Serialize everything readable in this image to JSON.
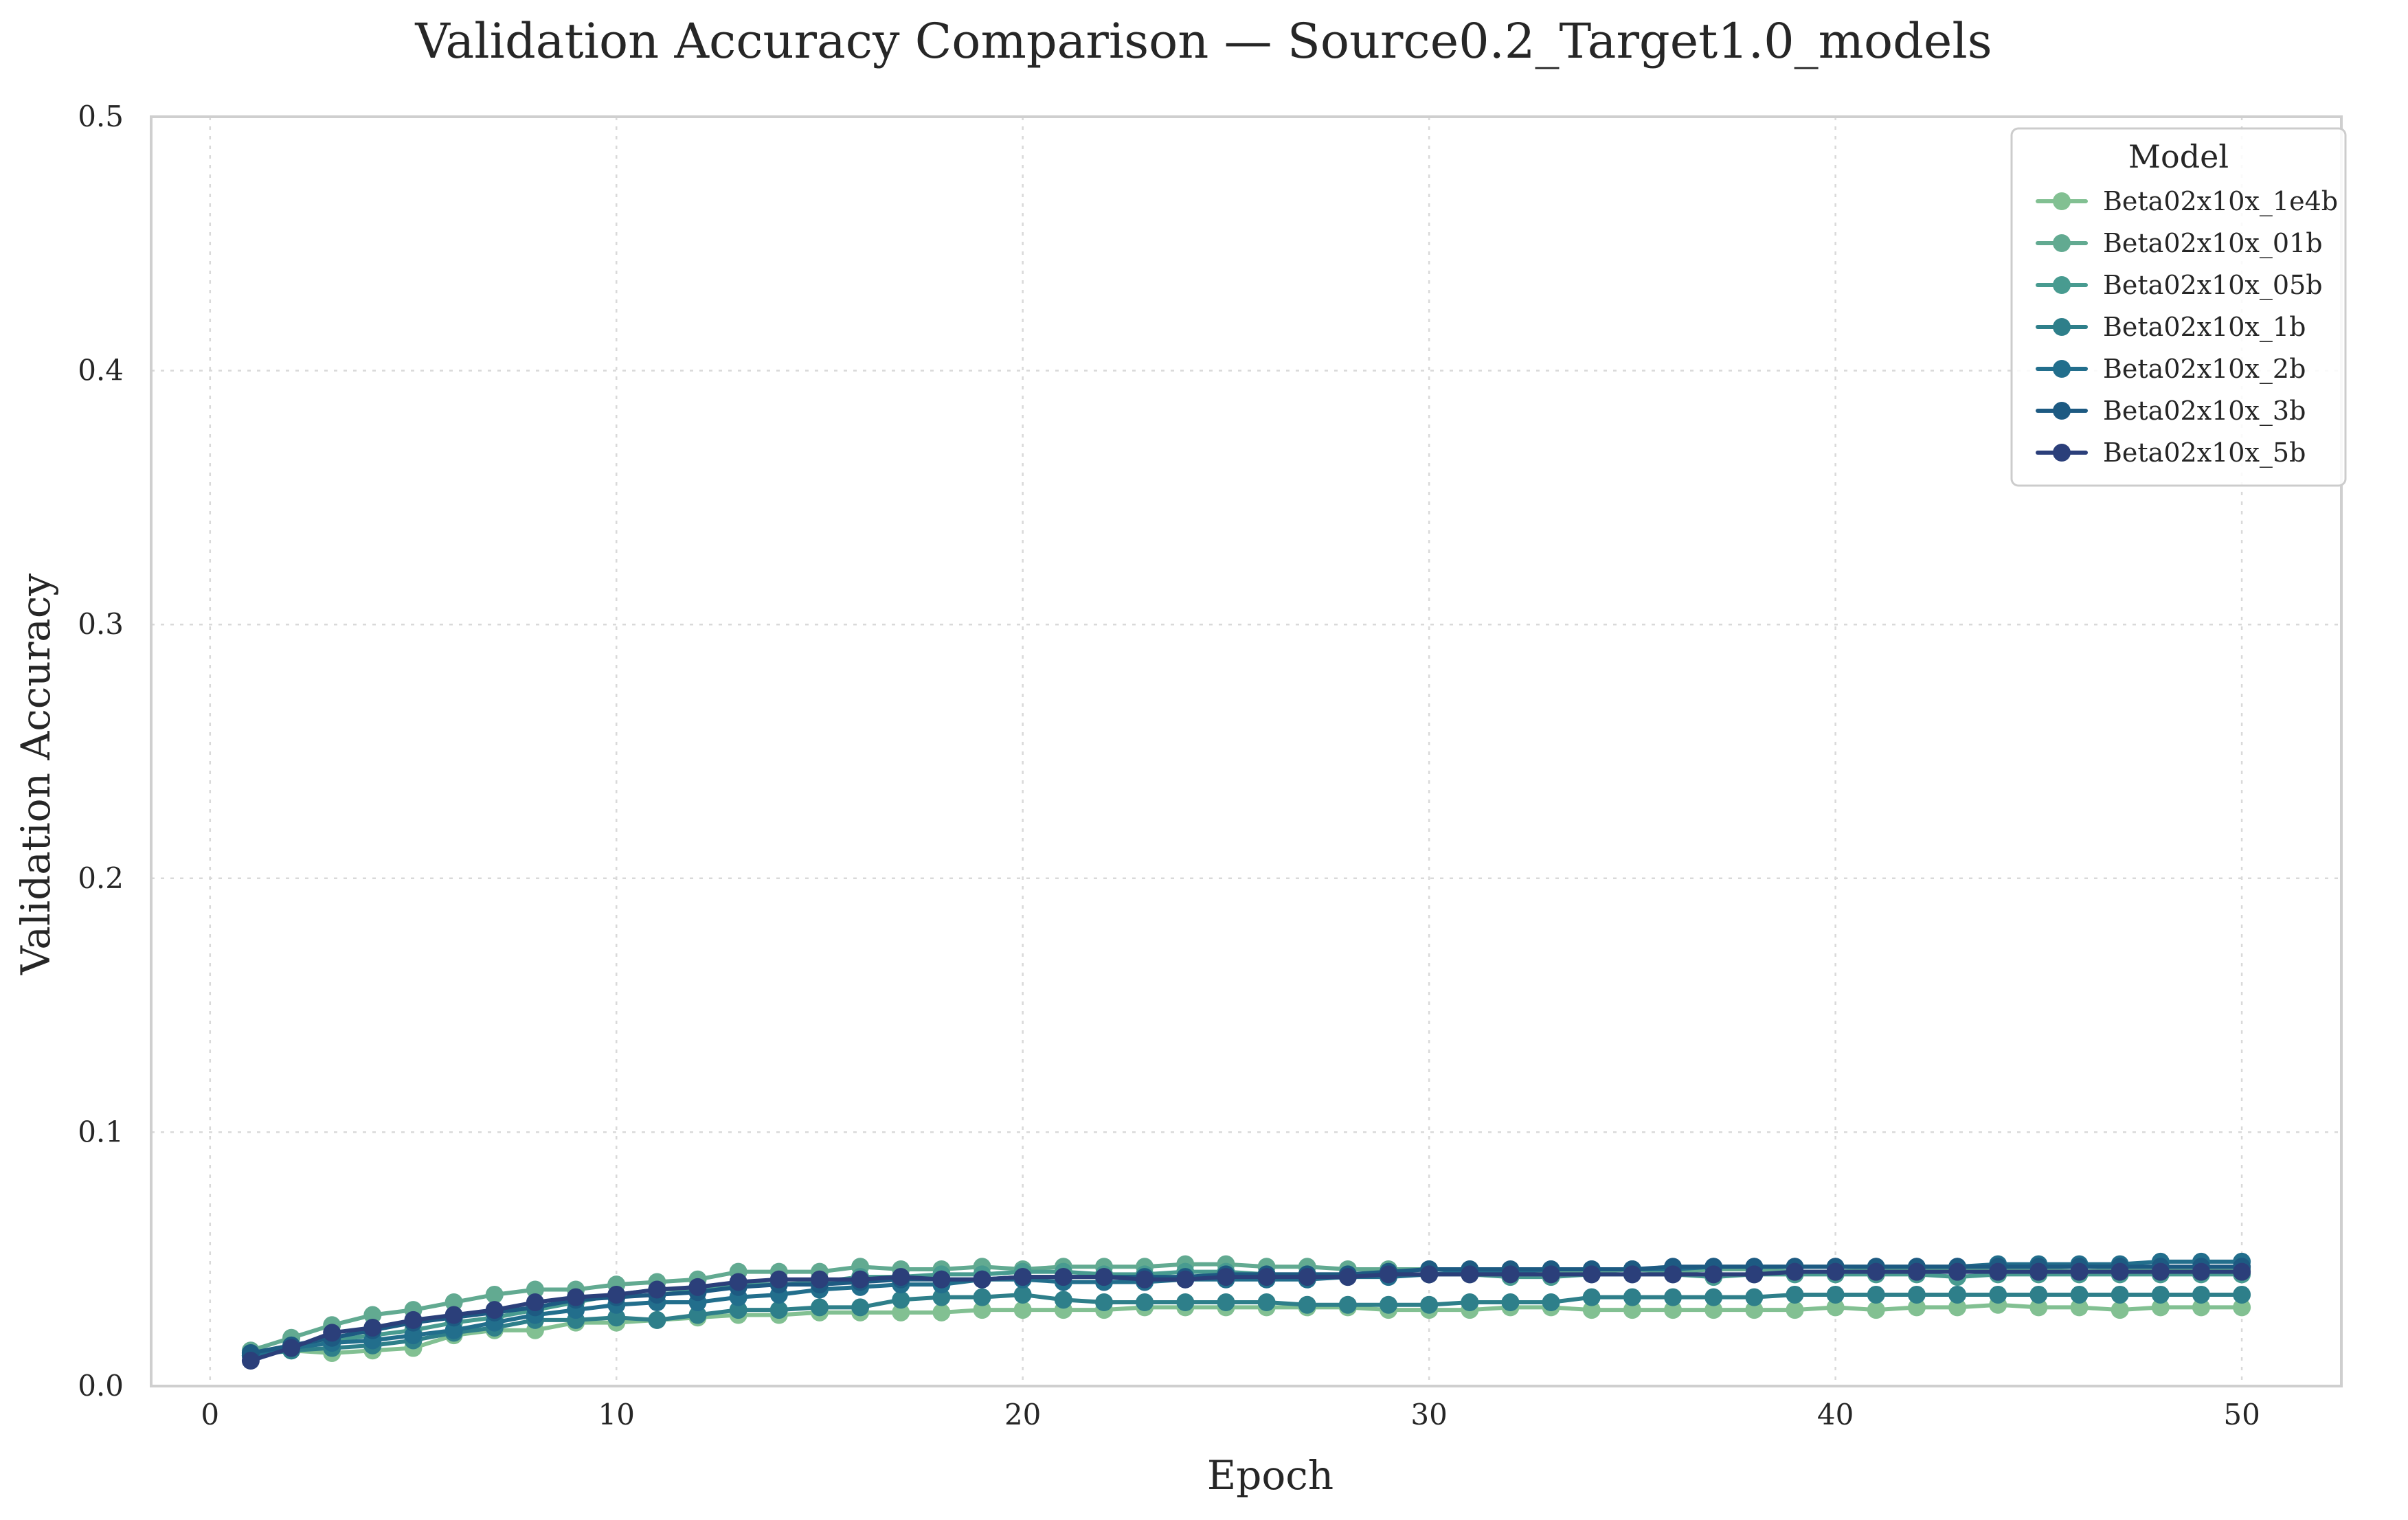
{
  "chart_data": {
    "type": "line",
    "title": "Validation Accuracy Comparison — Source0.2_Target1.0_models",
    "xlabel": "Epoch",
    "ylabel": "Validation Accuracy",
    "xlim": [
      -1.45,
      52.45
    ],
    "ylim": [
      0.0,
      0.5
    ],
    "xticks": [
      0,
      10,
      20,
      30,
      40,
      50
    ],
    "yticks": [
      0.0,
      0.1,
      0.2,
      0.3,
      0.4,
      0.5
    ],
    "xtick_labels": [
      "0",
      "10",
      "20",
      "30",
      "40",
      "50"
    ],
    "ytick_labels": [
      "0.0",
      "0.1",
      "0.2",
      "0.3",
      "0.4",
      "0.5"
    ],
    "grid": true,
    "legend": {
      "title": "Model",
      "position": "top-right"
    },
    "markers": "circle",
    "x": [
      1,
      2,
      3,
      4,
      5,
      6,
      7,
      8,
      9,
      10,
      11,
      12,
      13,
      14,
      15,
      16,
      17,
      18,
      19,
      20,
      21,
      22,
      23,
      24,
      25,
      26,
      27,
      28,
      29,
      30,
      31,
      32,
      33,
      34,
      35,
      36,
      37,
      38,
      39,
      40,
      41,
      42,
      43,
      44,
      45,
      46,
      47,
      48,
      49,
      50
    ],
    "series": [
      {
        "name": "Beta02x10x_1e4b",
        "color": "#82c092",
        "values": [
          0.012,
          0.014,
          0.013,
          0.014,
          0.015,
          0.02,
          0.022,
          0.022,
          0.025,
          0.025,
          0.026,
          0.027,
          0.028,
          0.028,
          0.029,
          0.029,
          0.029,
          0.029,
          0.03,
          0.03,
          0.03,
          0.03,
          0.031,
          0.031,
          0.031,
          0.031,
          0.031,
          0.031,
          0.03,
          0.03,
          0.03,
          0.031,
          0.031,
          0.03,
          0.03,
          0.03,
          0.03,
          0.03,
          0.03,
          0.031,
          0.03,
          0.031,
          0.031,
          0.032,
          0.031,
          0.031,
          0.03,
          0.031,
          0.031,
          0.031
        ]
      },
      {
        "name": "Beta02x10x_01b",
        "color": "#62aa91",
        "values": [
          0.014,
          0.019,
          0.024,
          0.028,
          0.03,
          0.033,
          0.036,
          0.038,
          0.038,
          0.04,
          0.041,
          0.042,
          0.045,
          0.045,
          0.045,
          0.047,
          0.046,
          0.046,
          0.047,
          0.046,
          0.047,
          0.047,
          0.047,
          0.048,
          0.048,
          0.047,
          0.047,
          0.046,
          0.046,
          0.046,
          0.046,
          0.045,
          0.045,
          0.045,
          0.046,
          0.045,
          0.046,
          0.046,
          0.045,
          0.045,
          0.046,
          0.046,
          0.046,
          0.046,
          0.046,
          0.045,
          0.046,
          0.046,
          0.046,
          0.046
        ]
      },
      {
        "name": "Beta02x10x_05b",
        "color": "#489b90",
        "values": [
          0.013,
          0.016,
          0.018,
          0.02,
          0.022,
          0.025,
          0.027,
          0.03,
          0.033,
          0.036,
          0.038,
          0.038,
          0.04,
          0.04,
          0.041,
          0.043,
          0.043,
          0.044,
          0.044,
          0.045,
          0.045,
          0.044,
          0.044,
          0.045,
          0.045,
          0.044,
          0.044,
          0.044,
          0.044,
          0.044,
          0.044,
          0.043,
          0.043,
          0.044,
          0.044,
          0.044,
          0.043,
          0.044,
          0.044,
          0.044,
          0.044,
          0.044,
          0.043,
          0.044,
          0.044,
          0.044,
          0.044,
          0.044,
          0.044,
          0.044
        ]
      },
      {
        "name": "Beta02x10x_1b",
        "color": "#2e7f8a",
        "values": [
          0.012,
          0.014,
          0.015,
          0.016,
          0.018,
          0.021,
          0.023,
          0.026,
          0.026,
          0.027,
          0.026,
          0.028,
          0.03,
          0.03,
          0.031,
          0.031,
          0.034,
          0.035,
          0.035,
          0.036,
          0.034,
          0.033,
          0.033,
          0.033,
          0.033,
          0.033,
          0.032,
          0.032,
          0.032,
          0.032,
          0.033,
          0.033,
          0.033,
          0.035,
          0.035,
          0.035,
          0.035,
          0.035,
          0.036,
          0.036,
          0.036,
          0.036,
          0.036,
          0.036,
          0.036,
          0.036,
          0.036,
          0.036,
          0.036,
          0.036
        ]
      },
      {
        "name": "Beta02x10x_2b",
        "color": "#226e8c",
        "values": [
          0.012,
          0.015,
          0.017,
          0.018,
          0.02,
          0.022,
          0.025,
          0.028,
          0.03,
          0.032,
          0.033,
          0.033,
          0.035,
          0.036,
          0.038,
          0.039,
          0.04,
          0.04,
          0.042,
          0.042,
          0.041,
          0.041,
          0.041,
          0.042,
          0.042,
          0.042,
          0.042,
          0.043,
          0.043,
          0.044,
          0.045,
          0.045,
          0.046,
          0.046,
          0.046,
          0.046,
          0.047,
          0.047,
          0.047,
          0.047,
          0.047,
          0.047,
          0.047,
          0.048,
          0.048,
          0.048,
          0.048,
          0.049,
          0.049,
          0.049
        ]
      },
      {
        "name": "Beta02x10x_3b",
        "color": "#1d5a82",
        "values": [
          0.013,
          0.016,
          0.019,
          0.022,
          0.025,
          0.027,
          0.029,
          0.031,
          0.034,
          0.035,
          0.036,
          0.037,
          0.039,
          0.04,
          0.04,
          0.041,
          0.042,
          0.042,
          0.042,
          0.043,
          0.043,
          0.043,
          0.043,
          0.043,
          0.044,
          0.044,
          0.044,
          0.044,
          0.045,
          0.046,
          0.046,
          0.046,
          0.046,
          0.046,
          0.046,
          0.047,
          0.047,
          0.047,
          0.047,
          0.047,
          0.047,
          0.047,
          0.047,
          0.047,
          0.047,
          0.047,
          0.047,
          0.047,
          0.047,
          0.047
        ]
      },
      {
        "name": "Beta02x10x_5b",
        "color": "#2b3f7a",
        "values": [
          0.01,
          0.015,
          0.021,
          0.023,
          0.026,
          0.028,
          0.03,
          0.033,
          0.035,
          0.036,
          0.038,
          0.039,
          0.041,
          0.042,
          0.042,
          0.042,
          0.043,
          0.042,
          0.042,
          0.043,
          0.043,
          0.043,
          0.042,
          0.042,
          0.043,
          0.043,
          0.043,
          0.043,
          0.044,
          0.044,
          0.044,
          0.044,
          0.044,
          0.044,
          0.044,
          0.044,
          0.044,
          0.044,
          0.045,
          0.045,
          0.045,
          0.045,
          0.045,
          0.045,
          0.045,
          0.045,
          0.045,
          0.045,
          0.045,
          0.045
        ]
      }
    ]
  }
}
